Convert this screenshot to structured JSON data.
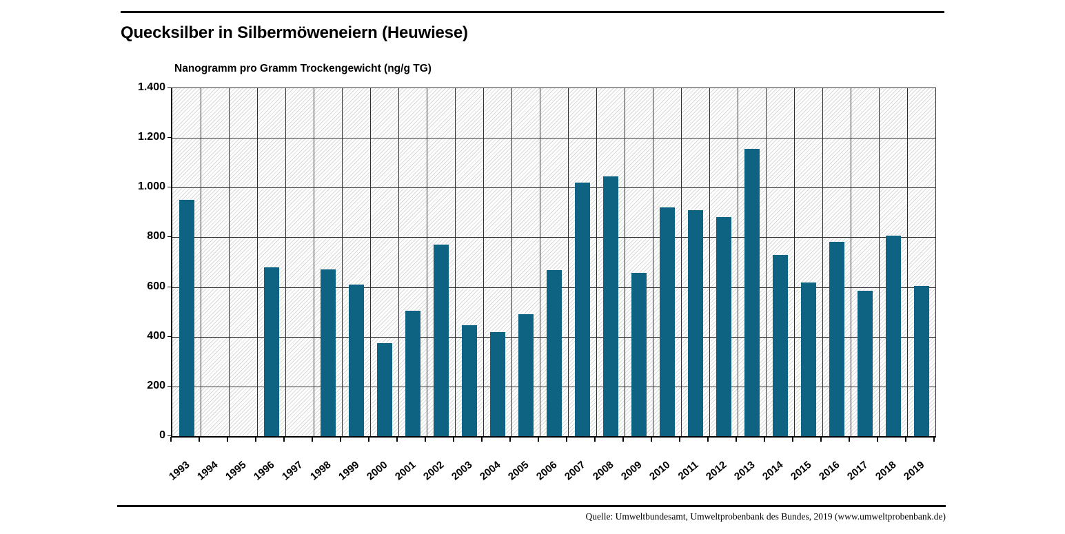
{
  "page": {
    "title": "Quecksilber in Silbermöweneiern (Heuwiese)",
    "axis_title": "Nanogramm pro Gramm Trockengewicht (ng/g TG)",
    "source": "Quelle: Umweltbundesamt, Umweltprobenbank des Bundes, 2019 (www.umweltprobenbank.de)"
  },
  "chart_data": {
    "type": "bar",
    "title": "Quecksilber in Silbermöweneiern (Heuwiese)",
    "ylabel": "Nanogramm pro Gramm Trockengewicht (ng/g TG)",
    "xlabel": "",
    "categories": [
      "1993",
      "1994",
      "1995",
      "1996",
      "1997",
      "1998",
      "1999",
      "2000",
      "2001",
      "2002",
      "2003",
      "2004",
      "2005",
      "2006",
      "2007",
      "2008",
      "2009",
      "2010",
      "2011",
      "2012",
      "2013",
      "2014",
      "2015",
      "2016",
      "2017",
      "2018",
      "2019"
    ],
    "values": [
      950,
      null,
      null,
      680,
      null,
      670,
      610,
      375,
      505,
      770,
      447,
      420,
      490,
      668,
      1020,
      1045,
      658,
      920,
      910,
      883,
      1156,
      730,
      617,
      783,
      584,
      806,
      605
    ],
    "ylim": [
      0,
      1400
    ],
    "ytick_step": 200,
    "ytick_labels": [
      "0",
      "200",
      "400",
      "600",
      "800",
      "1.000",
      "1.200",
      "1.400"
    ],
    "grid": true,
    "legend": false,
    "bar_color": "#0E6382",
    "background_hatch": true
  }
}
